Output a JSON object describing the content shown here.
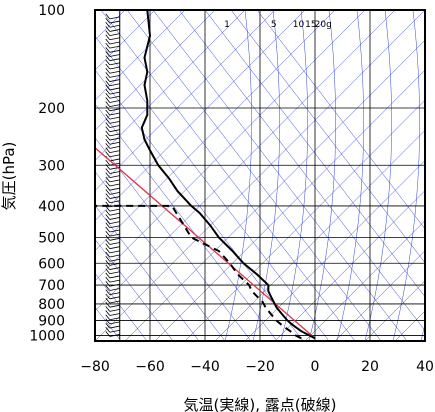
{
  "chart_data": {
    "type": "line",
    "title": "",
    "xlabel": "気温(実線), 露点(破線)",
    "ylabel": "気圧(hPa)",
    "xlim": [
      -80,
      40
    ],
    "ylim": [
      1040,
      100
    ],
    "y_scale": "log",
    "grid": true,
    "x_ticks": [
      "−80",
      "−60",
      "−40",
      "−20",
      "0",
      "20",
      "40"
    ],
    "x_tick_values": [
      -80,
      -60,
      -40,
      -20,
      0,
      20,
      40
    ],
    "y_ticks": [
      "100",
      "200",
      "300",
      "400",
      "500",
      "600",
      "700",
      "800",
      "900",
      "1000"
    ],
    "y_tick_values": [
      100,
      200,
      300,
      400,
      500,
      600,
      700,
      800,
      900,
      1000
    ],
    "mixing_ratio_labels": [
      "1",
      "5",
      "10",
      "15",
      "20g"
    ],
    "mixing_ratio_values": [
      1,
      5,
      10,
      15,
      20
    ],
    "series": [
      {
        "style": "solid",
        "color": "#000000",
        "points": [
          [
            0,
            1020
          ],
          [
            -2,
            1000
          ],
          [
            -5,
            970
          ],
          [
            -8,
            930
          ],
          [
            -10,
            900
          ],
          [
            -12,
            860
          ],
          [
            -14,
            820
          ],
          [
            -15,
            790
          ],
          [
            -16,
            760
          ],
          [
            -17,
            730
          ],
          [
            -17,
            700
          ],
          [
            -21,
            650
          ],
          [
            -26,
            600
          ],
          [
            -30,
            550
          ],
          [
            -35,
            500
          ],
          [
            -38,
            460
          ],
          [
            -42,
            420
          ],
          [
            -45,
            400
          ],
          [
            -50,
            360
          ],
          [
            -53,
            330
          ],
          [
            -57,
            300
          ],
          [
            -60,
            270
          ],
          [
            -62,
            250
          ],
          [
            -63,
            230
          ],
          [
            -61,
            210
          ],
          [
            -61,
            190
          ],
          [
            -62,
            170
          ],
          [
            -61,
            155
          ],
          [
            -62,
            140
          ],
          [
            -60,
            120
          ],
          [
            -61,
            100
          ]
        ]
      },
      {
        "style": "dashed",
        "color": "#000000",
        "points": [
          [
            -5,
            1020
          ],
          [
            -7,
            1000
          ],
          [
            -9,
            970
          ],
          [
            -12,
            930
          ],
          [
            -14,
            900
          ],
          [
            -16,
            860
          ],
          [
            -18,
            820
          ],
          [
            -19,
            790
          ],
          [
            -21,
            760
          ],
          [
            -23,
            730
          ],
          [
            -24,
            700
          ],
          [
            -28,
            650
          ],
          [
            -31,
            600
          ],
          [
            -35,
            550
          ],
          [
            -45,
            500
          ],
          [
            -49,
            440
          ],
          [
            -52,
            400
          ],
          [
            -80,
            400
          ]
        ]
      }
    ],
    "reference_line": {
      "color": "#e0304a",
      "from": [
        0,
        1020
      ],
      "to": [
        -80,
        265
      ]
    },
    "colors": {
      "grid": "#000000",
      "adiabat": "#3344dd",
      "temperature": "#000000",
      "dewpoint": "#000000",
      "reference": "#e0304a"
    }
  }
}
